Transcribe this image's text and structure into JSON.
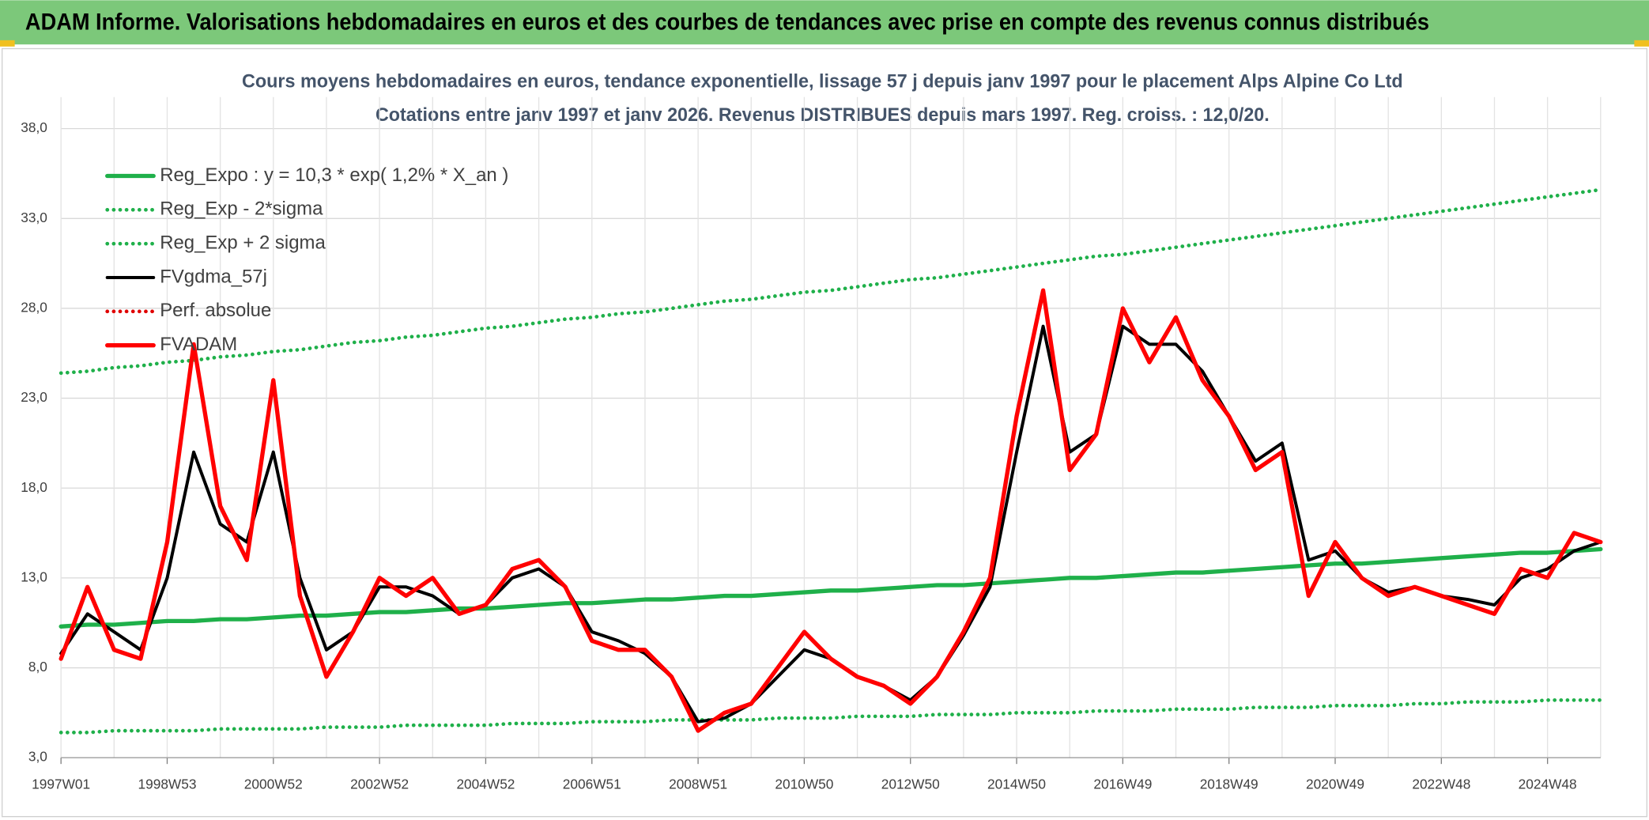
{
  "chart_data": {
    "type": "line",
    "header": "ADAM Informe. Valorisations hebdomadaires en euros et des courbes de tendances avec prise en compte des revenus connus distribués",
    "subtitle": [
      "Cours moyens hebdomadaires en euros, tendance exponentielle, lissage 57 j depuis janv 1997 pour le placement Alps Alpine Co Ltd",
      "Cotations entre janv 1997 et janv 2026. Revenus DISTRIBUES depuis mars 1997. Reg. croiss. : 12,0/20."
    ],
    "categories": [
      "1997W01",
      null,
      null,
      null,
      "1998W53",
      null,
      null,
      null,
      "2000W52",
      null,
      null,
      null,
      "2002W52",
      null,
      null,
      null,
      "2004W52",
      null,
      null,
      null,
      "2006W51",
      null,
      null,
      null,
      "2008W51",
      null,
      null,
      null,
      "2010W50",
      null,
      null,
      null,
      "2012W50",
      null,
      null,
      null,
      "2014W50",
      null,
      null,
      null,
      "2016W49",
      null,
      null,
      null,
      "2018W49",
      null,
      null,
      null,
      "2020W49",
      null,
      null,
      null,
      "2022W48",
      null,
      null,
      null,
      "2024W48",
      null,
      null
    ],
    "ylim": [
      3,
      38
    ],
    "yticks": [
      {
        "value": 3,
        "label": "3,0"
      },
      {
        "value": 8,
        "label": "8,0"
      },
      {
        "value": 13,
        "label": "13,0"
      },
      {
        "value": 18,
        "label": "18,0"
      },
      {
        "value": 23,
        "label": "23,0"
      },
      {
        "value": 28,
        "label": "28,0"
      },
      {
        "value": 33,
        "label": "33,0"
      },
      {
        "value": 38,
        "label": "38,0"
      }
    ],
    "grid": true,
    "legend": "upper left",
    "series": [
      {
        "name": "Reg_Expo : y = 10,3 * exp( 1,2% *  X_an )",
        "color": "#1fb04a",
        "style": "solid",
        "values": [
          10.3,
          10.4,
          10.4,
          10.5,
          10.6,
          10.6,
          10.7,
          10.7,
          10.8,
          10.9,
          10.9,
          11.0,
          11.1,
          11.1,
          11.2,
          11.3,
          11.3,
          11.4,
          11.5,
          11.6,
          11.6,
          11.7,
          11.8,
          11.8,
          11.9,
          12.0,
          12.0,
          12.1,
          12.2,
          12.3,
          12.3,
          12.4,
          12.5,
          12.6,
          12.6,
          12.7,
          12.8,
          12.9,
          13.0,
          13.0,
          13.1,
          13.2,
          13.3,
          13.3,
          13.4,
          13.5,
          13.6,
          13.7,
          13.8,
          13.8,
          13.9,
          14.0,
          14.1,
          14.2,
          14.3,
          14.4,
          14.4,
          14.5,
          14.6
        ]
      },
      {
        "name": "Reg_Exp - 2*sigma",
        "color": "#1fb04a",
        "style": "dotted",
        "values": [
          4.4,
          4.4,
          4.5,
          4.5,
          4.5,
          4.5,
          4.6,
          4.6,
          4.6,
          4.6,
          4.7,
          4.7,
          4.7,
          4.8,
          4.8,
          4.8,
          4.8,
          4.9,
          4.9,
          4.9,
          5.0,
          5.0,
          5.0,
          5.1,
          5.1,
          5.1,
          5.1,
          5.2,
          5.2,
          5.2,
          5.3,
          5.3,
          5.3,
          5.4,
          5.4,
          5.4,
          5.5,
          5.5,
          5.5,
          5.6,
          5.6,
          5.6,
          5.7,
          5.7,
          5.7,
          5.8,
          5.8,
          5.8,
          5.9,
          5.9,
          5.9,
          6.0,
          6.0,
          6.1,
          6.1,
          6.1,
          6.2,
          6.2,
          6.2
        ]
      },
      {
        "name": "Reg_Exp + 2 sigma",
        "color": "#1fb04a",
        "style": "dotted",
        "values": [
          24.4,
          24.5,
          24.7,
          24.8,
          25.0,
          25.1,
          25.3,
          25.4,
          25.6,
          25.7,
          25.9,
          26.1,
          26.2,
          26.4,
          26.5,
          26.7,
          26.9,
          27.0,
          27.2,
          27.4,
          27.5,
          27.7,
          27.8,
          28.0,
          28.2,
          28.4,
          28.5,
          28.7,
          28.9,
          29.0,
          29.2,
          29.4,
          29.6,
          29.7,
          29.9,
          30.1,
          30.3,
          30.5,
          30.7,
          30.9,
          31.0,
          31.2,
          31.4,
          31.6,
          31.8,
          32.0,
          32.2,
          32.4,
          32.6,
          32.8,
          33.0,
          33.2,
          33.4,
          33.6,
          33.8,
          34.0,
          34.2,
          34.4,
          34.6
        ]
      },
      {
        "name": "FVgdma_57j",
        "color": "#000000",
        "style": "solid",
        "values": [
          8.8,
          11,
          10,
          9,
          13,
          20,
          16,
          15,
          20,
          13,
          9,
          10,
          12.5,
          12.5,
          12,
          11,
          11.5,
          13,
          13.5,
          12.5,
          10,
          9.5,
          8.8,
          7.5,
          5,
          5.2,
          6,
          7.5,
          9,
          8.5,
          7.5,
          7,
          6.2,
          7.5,
          9.8,
          12.5,
          20,
          27,
          20,
          21,
          27,
          26,
          26,
          24.5,
          22,
          19.5,
          20.5,
          14,
          14.5,
          13,
          12.2,
          12.5,
          12,
          11.8,
          11.5,
          13,
          13.5,
          14.5,
          15
        ]
      },
      {
        "name": "Perf. absolue",
        "color": "#e00000",
        "style": "dotted",
        "values": [
          null,
          null,
          null,
          null,
          null,
          null,
          null,
          null,
          null,
          null,
          null,
          null,
          null,
          null,
          null,
          null,
          null,
          null,
          null,
          null,
          null,
          null,
          null,
          null,
          null,
          null,
          null,
          null,
          null,
          null,
          null,
          null,
          null,
          null,
          null,
          null,
          null,
          null,
          null,
          null,
          null,
          null,
          null,
          null,
          null,
          null,
          null,
          null,
          null,
          null,
          null,
          null,
          null,
          null,
          null,
          null,
          null,
          null,
          null
        ]
      },
      {
        "name": "FVADAM",
        "color": "#ff0000",
        "style": "solid",
        "values": [
          8.5,
          12.5,
          9,
          8.5,
          15,
          26,
          17,
          14,
          24,
          12,
          7.5,
          10,
          13,
          12,
          13,
          11,
          11.5,
          13.5,
          14,
          12.5,
          9.5,
          9,
          9,
          7.5,
          4.5,
          5.5,
          6,
          8,
          10,
          8.5,
          7.5,
          7,
          6,
          7.5,
          10,
          13,
          22,
          29,
          19,
          21,
          28,
          25,
          27.5,
          24,
          22,
          19,
          20,
          12,
          15,
          13,
          12,
          12.5,
          12,
          11.5,
          11,
          13.5,
          13,
          15.5,
          15
        ]
      }
    ]
  }
}
